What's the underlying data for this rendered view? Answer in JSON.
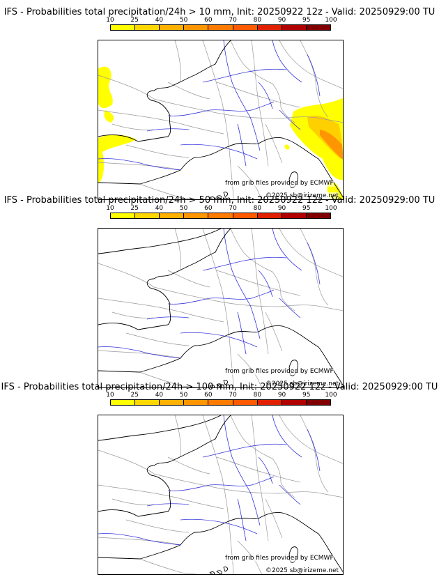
{
  "colorbar": {
    "labels": [
      "10",
      "25",
      "40",
      "50",
      "60",
      "70",
      "80",
      "90",
      "95",
      "100"
    ],
    "colors": [
      "#ffff00",
      "#ffd700",
      "#ffb000",
      "#ff9500",
      "#ff7a00",
      "#ff5a00",
      "#e02000",
      "#b00000",
      "#800000",
      "#500000"
    ]
  },
  "colors": {
    "coast": "#000000",
    "borders": "#999999",
    "rivers": "#3333dd",
    "precip_light": "#ffff00",
    "precip_mid": "#ffd000",
    "precip_high": "#ff9500"
  },
  "panels": [
    {
      "title": "IFS - Probabilities total precipitation/24h > 10 mm, Init: 20250922 12z - Valid: 20250929:00 TU",
      "credit_source": "from grib files provided by ECMWF",
      "credit_copyright": "©2025 sb@irizeme.net",
      "has_precip": true
    },
    {
      "title": "IFS - Probabilities total precipitation/24h > 50 mm, Init: 20250922 12z - Valid: 20250929:00 TU",
      "credit_source": "from grib files provided by ECMWF",
      "credit_copyright": "©2025 sb@irizeme.net",
      "has_precip": false
    },
    {
      "title": "IFS - Probabilities total precipitation/24h > 100 mm, Init: 20250922 12z - Valid: 20250929:00 TU",
      "credit_source": "from grib files provided by ECMWF",
      "credit_copyright": "©2025 sb@irizeme.net",
      "has_precip": false
    }
  ]
}
